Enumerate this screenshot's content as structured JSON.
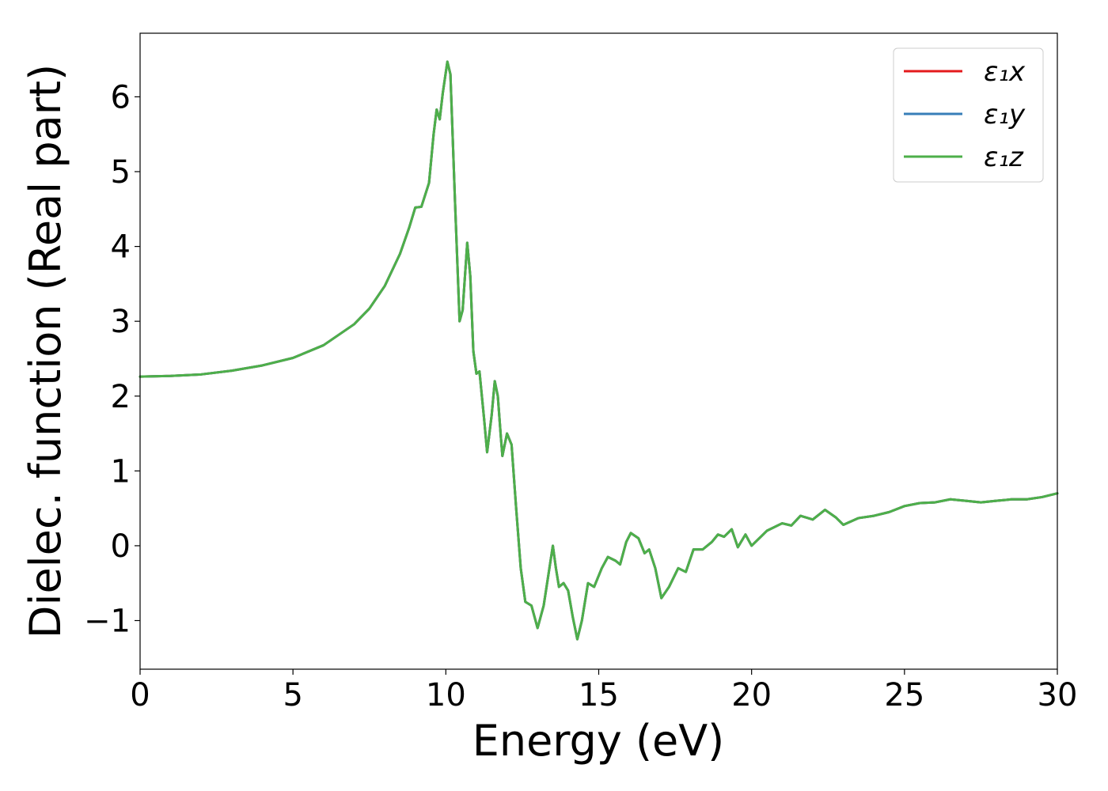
{
  "chart_data": {
    "type": "line",
    "xlabel": "Energy (eV)",
    "ylabel": "Dielec. function (Real part)",
    "xlim": [
      0,
      30
    ],
    "ylim": [
      -1.65,
      6.85
    ],
    "x_ticks": [
      0,
      5,
      10,
      15,
      20,
      25,
      30
    ],
    "x_tick_labels": [
      "0",
      "5",
      "10",
      "15",
      "20",
      "25",
      "30"
    ],
    "y_ticks": [
      -1,
      0,
      1,
      2,
      3,
      4,
      5,
      6
    ],
    "y_tick_labels": [
      "−1",
      "0",
      "1",
      "2",
      "3",
      "4",
      "5",
      "6"
    ],
    "grid": false,
    "legend_position": "top-right",
    "series": [
      {
        "name": "ε₁x",
        "color": "#e41a1c",
        "points": [
          [
            0,
            2.26
          ],
          [
            1,
            2.27
          ],
          [
            2,
            2.29
          ],
          [
            3,
            2.34
          ],
          [
            4,
            2.41
          ],
          [
            5,
            2.51
          ],
          [
            6,
            2.68
          ],
          [
            7,
            2.96
          ],
          [
            7.5,
            3.17
          ],
          [
            8,
            3.47
          ],
          [
            8.5,
            3.9
          ],
          [
            8.8,
            4.25
          ],
          [
            9,
            4.52
          ],
          [
            9.2,
            4.53
          ],
          [
            9.45,
            4.85
          ],
          [
            9.6,
            5.5
          ],
          [
            9.7,
            5.83
          ],
          [
            9.8,
            5.7
          ],
          [
            9.9,
            6.05
          ],
          [
            10.05,
            6.47
          ],
          [
            10.15,
            6.3
          ],
          [
            10.3,
            4.6
          ],
          [
            10.45,
            3.0
          ],
          [
            10.55,
            3.15
          ],
          [
            10.7,
            4.05
          ],
          [
            10.8,
            3.6
          ],
          [
            10.9,
            2.6
          ],
          [
            11.0,
            2.3
          ],
          [
            11.1,
            2.33
          ],
          [
            11.25,
            1.7
          ],
          [
            11.35,
            1.25
          ],
          [
            11.5,
            1.75
          ],
          [
            11.6,
            2.2
          ],
          [
            11.7,
            2.0
          ],
          [
            11.8,
            1.45
          ],
          [
            11.85,
            1.2
          ],
          [
            12.0,
            1.5
          ],
          [
            12.15,
            1.35
          ],
          [
            12.3,
            0.5
          ],
          [
            12.45,
            -0.3
          ],
          [
            12.6,
            -0.75
          ],
          [
            12.8,
            -0.8
          ],
          [
            13.0,
            -1.1
          ],
          [
            13.2,
            -0.8
          ],
          [
            13.5,
            0.0
          ],
          [
            13.6,
            -0.3
          ],
          [
            13.7,
            -0.55
          ],
          [
            13.85,
            -0.5
          ],
          [
            14.0,
            -0.6
          ],
          [
            14.15,
            -0.95
          ],
          [
            14.3,
            -1.25
          ],
          [
            14.45,
            -1.0
          ],
          [
            14.65,
            -0.5
          ],
          [
            14.85,
            -0.55
          ],
          [
            15.1,
            -0.3
          ],
          [
            15.3,
            -0.15
          ],
          [
            15.55,
            -0.2
          ],
          [
            15.7,
            -0.25
          ],
          [
            15.9,
            0.05
          ],
          [
            16.05,
            0.17
          ],
          [
            16.3,
            0.1
          ],
          [
            16.5,
            -0.1
          ],
          [
            16.65,
            -0.05
          ],
          [
            16.85,
            -0.3
          ],
          [
            17.05,
            -0.7
          ],
          [
            17.3,
            -0.55
          ],
          [
            17.6,
            -0.3
          ],
          [
            17.85,
            -0.35
          ],
          [
            18.1,
            -0.05
          ],
          [
            18.4,
            -0.05
          ],
          [
            18.7,
            0.05
          ],
          [
            18.9,
            0.15
          ],
          [
            19.1,
            0.12
          ],
          [
            19.35,
            0.22
          ],
          [
            19.55,
            -0.02
          ],
          [
            19.8,
            0.15
          ],
          [
            20.0,
            0.0
          ],
          [
            20.5,
            0.2
          ],
          [
            21.0,
            0.3
          ],
          [
            21.3,
            0.27
          ],
          [
            21.6,
            0.4
          ],
          [
            22.0,
            0.35
          ],
          [
            22.4,
            0.48
          ],
          [
            22.75,
            0.38
          ],
          [
            23.0,
            0.28
          ],
          [
            23.5,
            0.37
          ],
          [
            24.0,
            0.4
          ],
          [
            24.5,
            0.45
          ],
          [
            25.0,
            0.53
          ],
          [
            25.5,
            0.57
          ],
          [
            26.0,
            0.58
          ],
          [
            26.5,
            0.62
          ],
          [
            27.0,
            0.6
          ],
          [
            27.5,
            0.58
          ],
          [
            28.0,
            0.6
          ],
          [
            28.5,
            0.62
          ],
          [
            29.0,
            0.62
          ],
          [
            29.5,
            0.65
          ],
          [
            30.0,
            0.7
          ]
        ]
      },
      {
        "name": "ε₁y",
        "color": "#377eb8",
        "points": [
          [
            0,
            2.26
          ],
          [
            1,
            2.27
          ],
          [
            2,
            2.29
          ],
          [
            3,
            2.34
          ],
          [
            4,
            2.41
          ],
          [
            5,
            2.51
          ],
          [
            6,
            2.68
          ],
          [
            7,
            2.96
          ],
          [
            7.5,
            3.17
          ],
          [
            8,
            3.47
          ],
          [
            8.5,
            3.9
          ],
          [
            8.8,
            4.25
          ],
          [
            9,
            4.52
          ],
          [
            9.2,
            4.53
          ],
          [
            9.45,
            4.85
          ],
          [
            9.6,
            5.5
          ],
          [
            9.7,
            5.83
          ],
          [
            9.8,
            5.7
          ],
          [
            9.9,
            6.05
          ],
          [
            10.05,
            6.47
          ],
          [
            10.15,
            6.3
          ],
          [
            10.3,
            4.6
          ],
          [
            10.45,
            3.0
          ],
          [
            10.55,
            3.15
          ],
          [
            10.7,
            4.05
          ],
          [
            10.8,
            3.6
          ],
          [
            10.9,
            2.6
          ],
          [
            11.0,
            2.3
          ],
          [
            11.1,
            2.33
          ],
          [
            11.25,
            1.7
          ],
          [
            11.35,
            1.25
          ],
          [
            11.5,
            1.75
          ],
          [
            11.6,
            2.2
          ],
          [
            11.7,
            2.0
          ],
          [
            11.8,
            1.45
          ],
          [
            11.85,
            1.2
          ],
          [
            12.0,
            1.5
          ],
          [
            12.15,
            1.35
          ],
          [
            12.3,
            0.5
          ],
          [
            12.45,
            -0.3
          ],
          [
            12.6,
            -0.75
          ],
          [
            12.8,
            -0.8
          ],
          [
            13.0,
            -1.1
          ],
          [
            13.2,
            -0.8
          ],
          [
            13.5,
            0.0
          ],
          [
            13.6,
            -0.3
          ],
          [
            13.7,
            -0.55
          ],
          [
            13.85,
            -0.5
          ],
          [
            14.0,
            -0.6
          ],
          [
            14.15,
            -0.95
          ],
          [
            14.3,
            -1.25
          ],
          [
            14.45,
            -1.0
          ],
          [
            14.65,
            -0.5
          ],
          [
            14.85,
            -0.55
          ],
          [
            15.1,
            -0.3
          ],
          [
            15.3,
            -0.15
          ],
          [
            15.55,
            -0.2
          ],
          [
            15.7,
            -0.25
          ],
          [
            15.9,
            0.05
          ],
          [
            16.05,
            0.17
          ],
          [
            16.3,
            0.1
          ],
          [
            16.5,
            -0.1
          ],
          [
            16.65,
            -0.05
          ],
          [
            16.85,
            -0.3
          ],
          [
            17.05,
            -0.7
          ],
          [
            17.3,
            -0.55
          ],
          [
            17.6,
            -0.3
          ],
          [
            17.85,
            -0.35
          ],
          [
            18.1,
            -0.05
          ],
          [
            18.4,
            -0.05
          ],
          [
            18.7,
            0.05
          ],
          [
            18.9,
            0.15
          ],
          [
            19.1,
            0.12
          ],
          [
            19.35,
            0.22
          ],
          [
            19.55,
            -0.02
          ],
          [
            19.8,
            0.15
          ],
          [
            20.0,
            0.0
          ],
          [
            20.5,
            0.2
          ],
          [
            21.0,
            0.3
          ],
          [
            21.3,
            0.27
          ],
          [
            21.6,
            0.4
          ],
          [
            22.0,
            0.35
          ],
          [
            22.4,
            0.48
          ],
          [
            22.75,
            0.38
          ],
          [
            23.0,
            0.28
          ],
          [
            23.5,
            0.37
          ],
          [
            24.0,
            0.4
          ],
          [
            24.5,
            0.45
          ],
          [
            25.0,
            0.53
          ],
          [
            25.5,
            0.57
          ],
          [
            26.0,
            0.58
          ],
          [
            26.5,
            0.62
          ],
          [
            27.0,
            0.6
          ],
          [
            27.5,
            0.58
          ],
          [
            28.0,
            0.6
          ],
          [
            28.5,
            0.62
          ],
          [
            29.0,
            0.62
          ],
          [
            29.5,
            0.65
          ],
          [
            30.0,
            0.7
          ]
        ]
      },
      {
        "name": "ε₁z",
        "color": "#4daf4a",
        "points": [
          [
            0,
            2.26
          ],
          [
            1,
            2.27
          ],
          [
            2,
            2.29
          ],
          [
            3,
            2.34
          ],
          [
            4,
            2.41
          ],
          [
            5,
            2.51
          ],
          [
            6,
            2.68
          ],
          [
            7,
            2.96
          ],
          [
            7.5,
            3.17
          ],
          [
            8,
            3.47
          ],
          [
            8.5,
            3.9
          ],
          [
            8.8,
            4.25
          ],
          [
            9,
            4.52
          ],
          [
            9.2,
            4.53
          ],
          [
            9.45,
            4.85
          ],
          [
            9.6,
            5.5
          ],
          [
            9.7,
            5.83
          ],
          [
            9.8,
            5.7
          ],
          [
            9.9,
            6.05
          ],
          [
            10.05,
            6.47
          ],
          [
            10.15,
            6.3
          ],
          [
            10.3,
            4.6
          ],
          [
            10.45,
            3.0
          ],
          [
            10.55,
            3.15
          ],
          [
            10.7,
            4.05
          ],
          [
            10.8,
            3.6
          ],
          [
            10.9,
            2.6
          ],
          [
            11.0,
            2.3
          ],
          [
            11.1,
            2.33
          ],
          [
            11.25,
            1.7
          ],
          [
            11.35,
            1.25
          ],
          [
            11.5,
            1.75
          ],
          [
            11.6,
            2.2
          ],
          [
            11.7,
            2.0
          ],
          [
            11.8,
            1.45
          ],
          [
            11.85,
            1.2
          ],
          [
            12.0,
            1.5
          ],
          [
            12.15,
            1.35
          ],
          [
            12.3,
            0.5
          ],
          [
            12.45,
            -0.3
          ],
          [
            12.6,
            -0.75
          ],
          [
            12.8,
            -0.8
          ],
          [
            13.0,
            -1.1
          ],
          [
            13.2,
            -0.8
          ],
          [
            13.5,
            0.0
          ],
          [
            13.6,
            -0.3
          ],
          [
            13.7,
            -0.55
          ],
          [
            13.85,
            -0.5
          ],
          [
            14.0,
            -0.6
          ],
          [
            14.15,
            -0.95
          ],
          [
            14.3,
            -1.25
          ],
          [
            14.45,
            -1.0
          ],
          [
            14.65,
            -0.5
          ],
          [
            14.85,
            -0.55
          ],
          [
            15.1,
            -0.3
          ],
          [
            15.3,
            -0.15
          ],
          [
            15.55,
            -0.2
          ],
          [
            15.7,
            -0.25
          ],
          [
            15.9,
            0.05
          ],
          [
            16.05,
            0.17
          ],
          [
            16.3,
            0.1
          ],
          [
            16.5,
            -0.1
          ],
          [
            16.65,
            -0.05
          ],
          [
            16.85,
            -0.3
          ],
          [
            17.05,
            -0.7
          ],
          [
            17.3,
            -0.55
          ],
          [
            17.6,
            -0.3
          ],
          [
            17.85,
            -0.35
          ],
          [
            18.1,
            -0.05
          ],
          [
            18.4,
            -0.05
          ],
          [
            18.7,
            0.05
          ],
          [
            18.9,
            0.15
          ],
          [
            19.1,
            0.12
          ],
          [
            19.35,
            0.22
          ],
          [
            19.55,
            -0.02
          ],
          [
            19.8,
            0.15
          ],
          [
            20.0,
            0.0
          ],
          [
            20.5,
            0.2
          ],
          [
            21.0,
            0.3
          ],
          [
            21.3,
            0.27
          ],
          [
            21.6,
            0.4
          ],
          [
            22.0,
            0.35
          ],
          [
            22.4,
            0.48
          ],
          [
            22.75,
            0.38
          ],
          [
            23.0,
            0.28
          ],
          [
            23.5,
            0.37
          ],
          [
            24.0,
            0.4
          ],
          [
            24.5,
            0.45
          ],
          [
            25.0,
            0.53
          ],
          [
            25.5,
            0.57
          ],
          [
            26.0,
            0.58
          ],
          [
            26.5,
            0.62
          ],
          [
            27.0,
            0.6
          ],
          [
            27.5,
            0.58
          ],
          [
            28.0,
            0.6
          ],
          [
            28.5,
            0.62
          ],
          [
            29.0,
            0.62
          ],
          [
            29.5,
            0.65
          ],
          [
            30.0,
            0.7
          ]
        ]
      }
    ]
  }
}
